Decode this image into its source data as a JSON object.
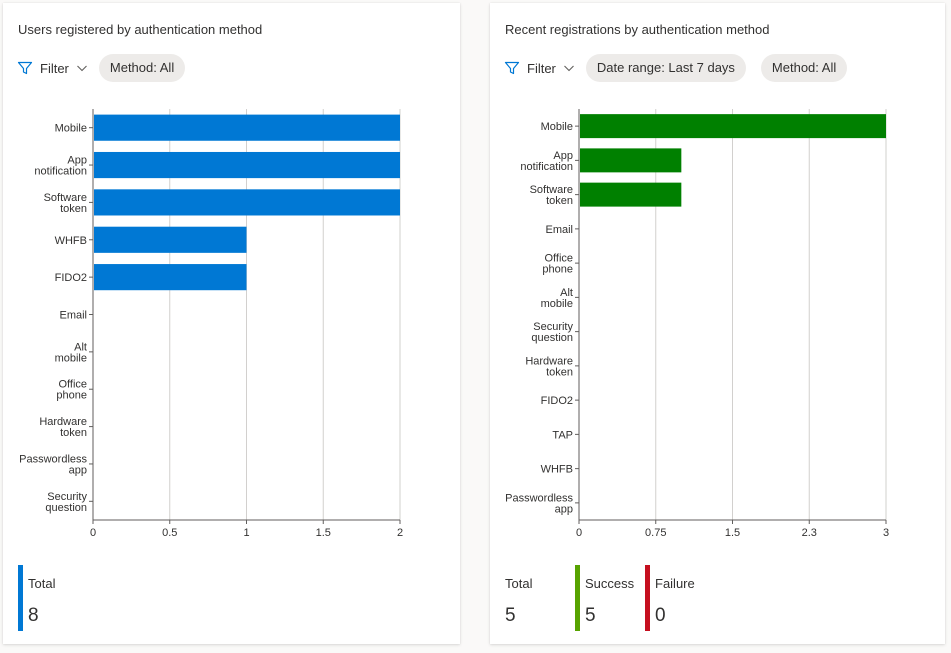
{
  "panels": {
    "users_registered": {
      "title": "Users registered by authentication method",
      "filter_label": "Filter",
      "pills": [
        "Method: All"
      ],
      "stats": [
        {
          "label": "Total",
          "value": "8",
          "color": "#0078d4"
        }
      ]
    },
    "recent_registrations": {
      "title": "Recent registrations by authentication method",
      "filter_label": "Filter",
      "pills": [
        "Date range: Last 7 days",
        "Method: All"
      ],
      "stats": [
        {
          "label": "Total",
          "value": "5",
          "color": ""
        },
        {
          "label": "Success",
          "value": "5",
          "color": "#57a300"
        },
        {
          "label": "Failure",
          "value": "0",
          "color": "#c50f1f"
        }
      ]
    }
  },
  "chart_data": [
    {
      "type": "bar",
      "orientation": "horizontal",
      "title": "Users registered by authentication method",
      "categories": [
        [
          "Mobile"
        ],
        [
          "App",
          "notification"
        ],
        [
          "Software",
          "token"
        ],
        [
          "WHFB"
        ],
        [
          "FIDO2"
        ],
        [
          "Email"
        ],
        [
          "Alt",
          "mobile"
        ],
        [
          "Office",
          "phone"
        ],
        [
          "Hardware",
          "token"
        ],
        [
          "Passwordless",
          "app"
        ],
        [
          "Security",
          "question"
        ]
      ],
      "values": [
        2,
        2,
        2,
        1,
        1,
        0,
        0,
        0,
        0,
        0,
        0
      ],
      "ticks": [
        "0",
        "0.5",
        "1",
        "1.5",
        "2"
      ],
      "xlim": [
        0,
        2
      ],
      "color": "#0078d4",
      "grid": true
    },
    {
      "type": "bar",
      "orientation": "horizontal",
      "title": "Recent registrations by authentication method",
      "categories": [
        [
          "Mobile"
        ],
        [
          "App",
          "notification"
        ],
        [
          "Software",
          "token"
        ],
        [
          "Email"
        ],
        [
          "Office",
          "phone"
        ],
        [
          "Alt",
          "mobile"
        ],
        [
          "Security",
          "question"
        ],
        [
          "Hardware",
          "token"
        ],
        [
          "FIDO2"
        ],
        [
          "TAP"
        ],
        [
          "WHFB"
        ],
        [
          "Passwordless",
          "app"
        ]
      ],
      "values": [
        3,
        1,
        1,
        0,
        0,
        0,
        0,
        0,
        0,
        0,
        0,
        0
      ],
      "ticks": [
        "0",
        "0.75",
        "1.5",
        "2.3",
        "3"
      ],
      "xlim": [
        0,
        3
      ],
      "color": "#008000",
      "grid": true
    }
  ]
}
